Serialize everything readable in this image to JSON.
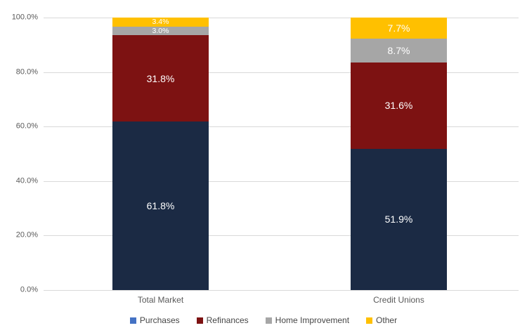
{
  "chart_data": {
    "type": "bar",
    "variant": "stacked-100",
    "title": "",
    "xlabel": "",
    "ylabel": "",
    "categories": [
      "Total Market",
      "Credit Unions"
    ],
    "series": [
      {
        "name": "Purchases",
        "color": "#1b2a44",
        "legend_color": "#4472c4",
        "values": [
          61.8,
          51.9
        ],
        "labels": [
          "61.8%",
          "51.9%"
        ]
      },
      {
        "name": "Refinances",
        "color": "#7d1212",
        "legend_color": "#7d1212",
        "values": [
          31.8,
          31.6
        ],
        "labels": [
          "31.8%",
          "31.6%"
        ]
      },
      {
        "name": "Home Improvement",
        "color": "#a6a6a6",
        "legend_color": "#a6a6a6",
        "values": [
          3.0,
          8.7
        ],
        "labels": [
          "3.0%",
          "8.7%"
        ]
      },
      {
        "name": "Other",
        "color": "#ffc000",
        "legend_color": "#ffc000",
        "values": [
          3.4,
          7.7
        ],
        "labels": [
          "3.4%",
          "7.7%"
        ]
      }
    ],
    "y_axis": {
      "ticks": [
        "100.0%",
        "80.0%",
        "60.0%",
        "40.0%",
        "20.0%",
        "0.0%"
      ],
      "range": [
        0,
        100
      ],
      "grid": true
    },
    "legend_position": "bottom",
    "colors": {
      "gridline": "#d9d9d9",
      "axis_text": "#595959",
      "legend_text": "#464646",
      "data_label_text": "#ffffff",
      "background": "#ffffff"
    }
  }
}
